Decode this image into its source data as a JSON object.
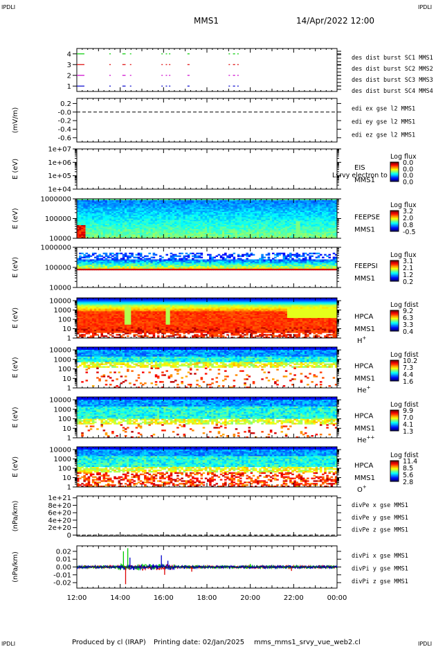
{
  "header": {
    "corner_left_top": "IPDLI",
    "corner_right_top": "IPDLI",
    "corner_left_bottom": "IPDLI",
    "corner_right_bottom": "IPDLI",
    "spacecraft": "MMS1",
    "datetime": "14/Apr/2022 12:00"
  },
  "footer": {
    "produced_by": "Produced by cl (IRAP)",
    "printing_date": "Printing date: 02/Jan/2025",
    "filename": "mms_mms1_srvy_vue_web2.cl"
  },
  "overlay_text": "Lsrvy electron to",
  "colors": {
    "mms1": "#0000cc",
    "mms2": "#cc00cc",
    "mms3": "#dd0000",
    "mms4": "#00cc00",
    "x": "#dd0000",
    "y": "#00cc00",
    "z": "#0000cc"
  },
  "chart_data": [
    {
      "type": "line",
      "panel": "burst",
      "x_range": [
        "12:00",
        "00:00"
      ],
      "yticks": [
        "1",
        "2",
        "3",
        "4"
      ],
      "ylim": [
        0.5,
        4.5
      ],
      "legend": [
        {
          "label": "des dist burst SC1 MMS1",
          "color": "#0000cc"
        },
        {
          "label": "des dist burst SC2 MMS2",
          "color": "#cc00cc"
        },
        {
          "label": "des dist burst SC3 MMS3",
          "color": "#dd0000"
        },
        {
          "label": "des dist burst SC4 MMS4",
          "color": "#00cc00"
        }
      ],
      "series": [
        {
          "level": 4,
          "color": "#00cc00",
          "intervals": [
            [
              12.0,
              12.35
            ],
            [
              13.5,
              13.55
            ],
            [
              14.1,
              14.25
            ],
            [
              14.45,
              14.5
            ],
            [
              15.9,
              15.95
            ],
            [
              16.1,
              16.15
            ],
            [
              16.25,
              16.3
            ],
            [
              17.1,
              17.2
            ],
            [
              19.0,
              19.05
            ],
            [
              19.2,
              19.3
            ],
            [
              19.4,
              19.45
            ]
          ]
        },
        {
          "level": 3,
          "color": "#dd0000",
          "intervals": [
            [
              12.0,
              12.35
            ],
            [
              13.5,
              13.55
            ],
            [
              14.1,
              14.25
            ],
            [
              14.45,
              14.5
            ],
            [
              15.9,
              15.95
            ],
            [
              16.1,
              16.15
            ],
            [
              16.25,
              16.3
            ],
            [
              17.1,
              17.2
            ],
            [
              19.0,
              19.05
            ],
            [
              19.2,
              19.3
            ],
            [
              19.4,
              19.45
            ]
          ]
        },
        {
          "level": 2,
          "color": "#cc00cc",
          "intervals": [
            [
              12.0,
              12.35
            ],
            [
              13.5,
              13.55
            ],
            [
              14.1,
              14.25
            ],
            [
              14.45,
              14.5
            ],
            [
              15.9,
              15.95
            ],
            [
              16.1,
              16.15
            ],
            [
              16.25,
              16.3
            ],
            [
              17.1,
              17.2
            ],
            [
              19.0,
              19.05
            ],
            [
              19.2,
              19.3
            ],
            [
              19.4,
              19.45
            ]
          ]
        },
        {
          "level": 1,
          "color": "#0000cc",
          "intervals": [
            [
              12.0,
              12.35
            ],
            [
              13.5,
              13.55
            ],
            [
              14.1,
              14.25
            ],
            [
              14.45,
              14.5
            ],
            [
              15.9,
              15.95
            ],
            [
              16.1,
              16.15
            ],
            [
              16.25,
              16.3
            ],
            [
              17.1,
              17.2
            ],
            [
              19.0,
              19.05
            ],
            [
              19.2,
              19.3
            ],
            [
              19.4,
              19.45
            ]
          ]
        }
      ]
    },
    {
      "type": "line",
      "panel": "edi",
      "ylabel": "(mV/m)",
      "yticks": [
        "0.2",
        "-0.0",
        "-0.2",
        "-0.4",
        "-0.6"
      ],
      "ytick_values": [
        0.2,
        0.0,
        -0.2,
        -0.4,
        -0.6
      ],
      "ylim": [
        -0.7,
        0.32
      ],
      "dashed_zero": true,
      "legend": [
        {
          "label": "edi ex gse l2 MMS1",
          "color": "#dd0000"
        },
        {
          "label": "edi ey gse l2 MMS1",
          "color": "#00cc00"
        },
        {
          "label": "edi ez gse l2 MMS1",
          "color": "#0000cc"
        }
      ]
    },
    {
      "type": "heatmap",
      "panel": "eis",
      "ylabel": "E (eV)",
      "yticks": [
        "1e+07",
        "1e+06",
        "1e+05",
        "1e+04"
      ],
      "ytick_logs": [
        7,
        6,
        5,
        4
      ],
      "ylog_range": [
        4,
        7
      ],
      "instrument": [
        "EIS",
        "MMS1"
      ],
      "colorbar": {
        "title": "Log flux",
        "labels": [
          "0.0",
          "0.0",
          "0.0",
          "0.0"
        ]
      },
      "empty": true
    },
    {
      "type": "heatmap",
      "panel": "feeps_e",
      "ylabel": "E (eV)",
      "yticks": [
        "1000000",
        "100000",
        "10000"
      ],
      "ytick_logs": [
        6,
        5,
        4
      ],
      "ylog_range": [
        4,
        6
      ],
      "instrument": [
        "FEEPSE",
        "MMS1"
      ],
      "colorbar": {
        "title": "Log flux",
        "labels": [
          "3.2",
          "2.0",
          "0.8",
          "-0.5"
        ]
      },
      "profile": "feepse"
    },
    {
      "type": "heatmap",
      "panel": "feeps_i",
      "ylabel": "E (eV)",
      "yticks": [
        "1000000",
        "100000",
        "10000"
      ],
      "ytick_logs": [
        6,
        5,
        4
      ],
      "ylog_range": [
        4,
        6
      ],
      "instrument": [
        "FEEPSI",
        "MMS1"
      ],
      "colorbar": {
        "title": "Log flux",
        "labels": [
          "3.1",
          "2.1",
          "1.2",
          "0.2"
        ]
      },
      "profile": "feepsi"
    },
    {
      "type": "heatmap",
      "panel": "hpca_h",
      "ylabel": "E (eV)",
      "yticks": [
        "10000",
        "1000",
        "100",
        "10",
        "1"
      ],
      "ytick_logs": [
        4,
        3,
        2,
        1,
        0
      ],
      "ylog_range": [
        0,
        4.3
      ],
      "instrument": [
        "HPCA",
        "MMS1"
      ],
      "species": "H",
      "charge": "+",
      "colorbar": {
        "title": "Log fdist",
        "labels": [
          "9.2",
          "6.3",
          "3.3",
          "0.4"
        ]
      },
      "profile": "h"
    },
    {
      "type": "heatmap",
      "panel": "hpca_he",
      "ylabel": "E (eV)",
      "yticks": [
        "10000",
        "1000",
        "100",
        "10",
        "1"
      ],
      "ytick_logs": [
        4,
        3,
        2,
        1,
        0
      ],
      "ylog_range": [
        0,
        4.3
      ],
      "instrument": [
        "HPCA",
        "MMS1"
      ],
      "species": "He",
      "charge": "+",
      "colorbar": {
        "title": "Log fdist",
        "labels": [
          "10.2",
          "7.3",
          "4.4",
          "1.6"
        ]
      },
      "profile": "he"
    },
    {
      "type": "heatmap",
      "panel": "hpca_hepp",
      "ylabel": "E (eV)",
      "yticks": [
        "10000",
        "1000",
        "100",
        "10",
        "1"
      ],
      "ytick_logs": [
        4,
        3,
        2,
        1,
        0
      ],
      "ylog_range": [
        0,
        4.3
      ],
      "instrument": [
        "HPCA",
        "MMS1"
      ],
      "species": "He",
      "charge": "++",
      "colorbar": {
        "title": "Log fdist",
        "labels": [
          "9.9",
          "7.0",
          "4.1",
          "1.3"
        ]
      },
      "profile": "hepp"
    },
    {
      "type": "heatmap",
      "panel": "hpca_o",
      "ylabel": "E (eV)",
      "yticks": [
        "10000",
        "1000",
        "100",
        "10",
        "1"
      ],
      "ytick_logs": [
        4,
        3,
        2,
        1,
        0
      ],
      "ylog_range": [
        0,
        4.3
      ],
      "instrument": [
        "HPCA",
        "MMS1"
      ],
      "species": "O",
      "charge": "+",
      "colorbar": {
        "title": "Log fdist",
        "labels": [
          "11.4",
          "8.5",
          "5.6",
          "2.8"
        ]
      },
      "profile": "o"
    },
    {
      "type": "line",
      "panel": "divpe",
      "ylabel": "(nPa/km)",
      "yticks": [
        "1e+21",
        "8e+20",
        "6e+20",
        "4e+20",
        "2e+20",
        "0"
      ],
      "ytick_values": [
        10,
        8,
        6,
        4,
        2,
        0
      ],
      "ylim": [
        -0.3,
        10.5
      ],
      "dashed_zero": true,
      "legend": [
        {
          "label": "divPe x gse MMS1",
          "color": "#dd0000"
        },
        {
          "label": "divPe y gse MMS1",
          "color": "#00cc00"
        },
        {
          "label": "divPe z gse MMS1",
          "color": "#0000cc"
        }
      ]
    },
    {
      "type": "line",
      "panel": "divpi",
      "ylabel": "(nPa/km)",
      "yticks": [
        "0.02",
        "0.01",
        "0.00",
        "-0.01",
        "-0.02"
      ],
      "ytick_values": [
        0.02,
        0.01,
        0.0,
        -0.01,
        -0.02
      ],
      "ylim": [
        -0.027,
        0.027
      ],
      "legend": [
        {
          "label": "divPi x gse MMS1",
          "color": "#dd0000"
        },
        {
          "label": "divPi y gse MMS1",
          "color": "#00cc00"
        },
        {
          "label": "divPi z gse MMS1",
          "color": "#0000cc"
        }
      ],
      "spikes": [
        {
          "t": 14.15,
          "color": "#00cc00",
          "amp": 0.02
        },
        {
          "t": 14.25,
          "color": "#dd0000",
          "amp": -0.022
        },
        {
          "t": 14.35,
          "color": "#00cc00",
          "amp": 0.024
        },
        {
          "t": 14.45,
          "color": "#0000cc",
          "amp": 0.012
        },
        {
          "t": 15.9,
          "color": "#0000cc",
          "amp": 0.015
        },
        {
          "t": 16.05,
          "color": "#dd0000",
          "amp": -0.01
        },
        {
          "t": 16.2,
          "color": "#0000cc",
          "amp": 0.008
        },
        {
          "t": 17.3,
          "color": "#dd0000",
          "amp": -0.006
        },
        {
          "t": 20.0,
          "color": "#00cc00",
          "amp": 0.004
        },
        {
          "t": 21.9,
          "color": "#dd0000",
          "amp": -0.005
        }
      ]
    }
  ],
  "x_axis": {
    "ticks": [
      "12:00",
      "14:00",
      "16:00",
      "18:00",
      "20:00",
      "22:00",
      "00:00"
    ],
    "tick_hours": [
      12,
      14,
      16,
      18,
      20,
      22,
      24
    ]
  }
}
